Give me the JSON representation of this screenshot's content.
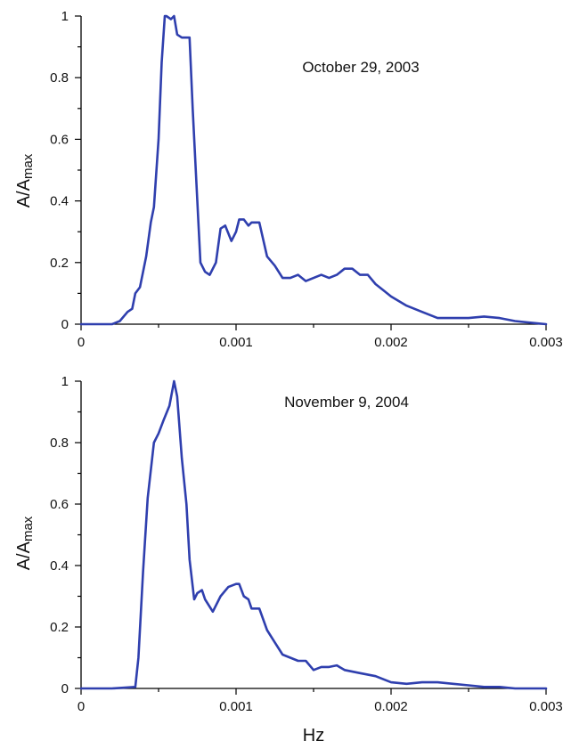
{
  "chart_data": [
    {
      "type": "line",
      "title": "",
      "annotation": "October 29, 2003",
      "xlabel": "",
      "ylabel_main": "A/A",
      "ylabel_sub": "max",
      "xlim": [
        0,
        0.003
      ],
      "ylim": [
        0,
        1
      ],
      "x_ticks": [
        "0",
        "0.001",
        "0.002",
        "0.003"
      ],
      "y_ticks": [
        "0",
        "0.2",
        "0.4",
        "0.6",
        "0.8",
        "1"
      ],
      "color": "#2f3fae",
      "series": [
        {
          "x": [
            0,
            0.0002,
            0.00025,
            0.0003,
            0.00033,
            0.00035,
            0.00038,
            0.0004,
            0.00042,
            0.00045,
            0.00047,
            0.0005,
            0.00052,
            0.00054,
            0.00055,
            0.00058,
            0.0006,
            0.00062,
            0.00065,
            0.0007,
            0.00072,
            0.00075,
            0.00077,
            0.0008,
            0.00083,
            0.00087,
            0.0009,
            0.00093,
            0.00097,
            0.001,
            0.00102,
            0.00105,
            0.00108,
            0.0011,
            0.00115,
            0.0012,
            0.00125,
            0.0013,
            0.00135,
            0.0014,
            0.00145,
            0.0015,
            0.00155,
            0.0016,
            0.00165,
            0.0017,
            0.00175,
            0.0018,
            0.00185,
            0.0019,
            0.00195,
            0.002,
            0.0021,
            0.0022,
            0.0023,
            0.0025,
            0.0026,
            0.0027,
            0.0028,
            0.0029,
            0.003
          ],
          "y": [
            0,
            0,
            0.01,
            0.04,
            0.05,
            0.1,
            0.12,
            0.17,
            0.22,
            0.33,
            0.38,
            0.6,
            0.85,
            1.0,
            1.0,
            0.99,
            1.0,
            0.94,
            0.93,
            0.93,
            0.7,
            0.4,
            0.2,
            0.17,
            0.16,
            0.2,
            0.31,
            0.32,
            0.27,
            0.3,
            0.34,
            0.34,
            0.32,
            0.33,
            0.33,
            0.22,
            0.19,
            0.15,
            0.15,
            0.16,
            0.14,
            0.15,
            0.16,
            0.15,
            0.16,
            0.18,
            0.18,
            0.16,
            0.16,
            0.13,
            0.11,
            0.09,
            0.06,
            0.04,
            0.02,
            0.02,
            0.025,
            0.02,
            0.01,
            0.005,
            0
          ]
        }
      ]
    },
    {
      "type": "line",
      "title": "",
      "annotation": "November 9, 2004",
      "xlabel": "Hz",
      "ylabel_main": "A/A",
      "ylabel_sub": "max",
      "xlim": [
        0,
        0.003
      ],
      "ylim": [
        0,
        1
      ],
      "x_ticks": [
        "0",
        "0.001",
        "0.002",
        "0.003"
      ],
      "y_ticks": [
        "0",
        "0.2",
        "0.4",
        "0.6",
        "0.8",
        "1"
      ],
      "color": "#2f3fae",
      "series": [
        {
          "x": [
            0,
            0.0002,
            0.00035,
            0.00037,
            0.0004,
            0.00043,
            0.00047,
            0.0005,
            0.00053,
            0.00057,
            0.0006,
            0.00062,
            0.00065,
            0.00068,
            0.0007,
            0.00073,
            0.00075,
            0.00078,
            0.0008,
            0.00085,
            0.0009,
            0.00095,
            0.001,
            0.00102,
            0.00105,
            0.00108,
            0.0011,
            0.00115,
            0.0012,
            0.00125,
            0.0013,
            0.00135,
            0.0014,
            0.00145,
            0.0015,
            0.00155,
            0.0016,
            0.00165,
            0.0017,
            0.0018,
            0.0019,
            0.002,
            0.0021,
            0.0022,
            0.0023,
            0.0024,
            0.0025,
            0.0026,
            0.0027,
            0.0028,
            0.003
          ],
          "y": [
            0,
            0,
            0.005,
            0.1,
            0.38,
            0.62,
            0.8,
            0.83,
            0.87,
            0.92,
            1.0,
            0.95,
            0.75,
            0.6,
            0.42,
            0.29,
            0.31,
            0.32,
            0.29,
            0.25,
            0.3,
            0.33,
            0.34,
            0.34,
            0.3,
            0.29,
            0.26,
            0.26,
            0.19,
            0.15,
            0.11,
            0.1,
            0.09,
            0.09,
            0.06,
            0.07,
            0.07,
            0.075,
            0.06,
            0.05,
            0.04,
            0.02,
            0.015,
            0.02,
            0.02,
            0.015,
            0.01,
            0.005,
            0.005,
            0,
            0
          ]
        }
      ]
    }
  ]
}
